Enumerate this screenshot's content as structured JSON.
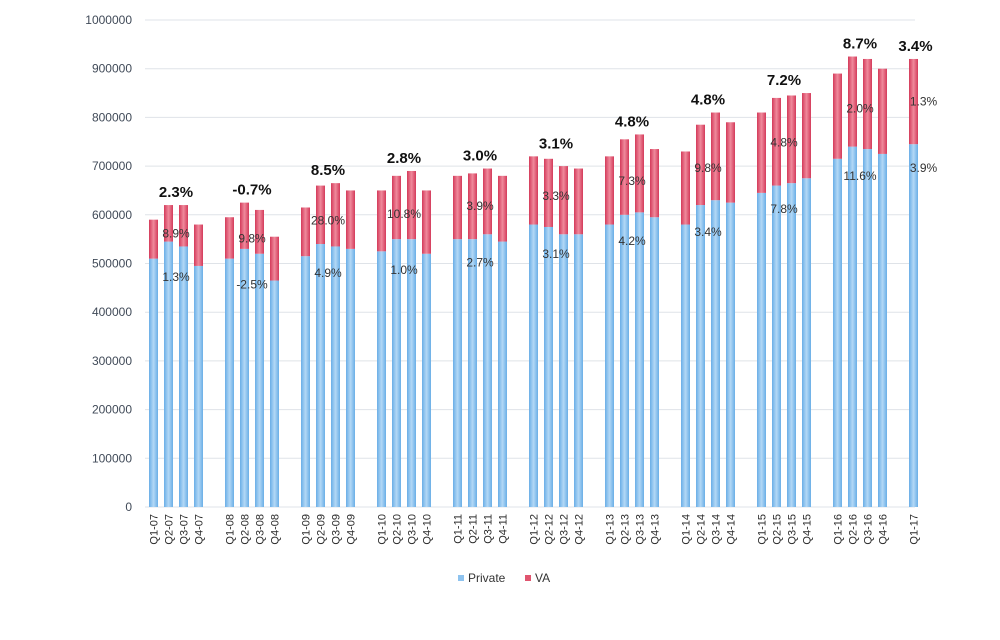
{
  "chart_data": {
    "type": "bar",
    "stacked": true,
    "title": "",
    "xlabel": "",
    "ylabel": "",
    "ylim": [
      0,
      1000000
    ],
    "yticks": [
      0,
      100000,
      200000,
      300000,
      400000,
      500000,
      600000,
      700000,
      800000,
      900000,
      1000000
    ],
    "grid": true,
    "legend_position": "bottom",
    "categories": [
      "Q1-07",
      "Q2-07",
      "Q3-07",
      "Q4-07",
      "Q1-08",
      "Q2-08",
      "Q3-08",
      "Q4-08",
      "Q1-09",
      "Q2-09",
      "Q3-09",
      "Q4-09",
      "Q1-10",
      "Q2-10",
      "Q3-10",
      "Q4-10",
      "Q1-11",
      "Q2-11",
      "Q3-11",
      "Q4-11",
      "Q1-12",
      "Q2-12",
      "Q3-12",
      "Q4-12",
      "Q1-13",
      "Q2-13",
      "Q3-13",
      "Q4-13",
      "Q1-14",
      "Q2-14",
      "Q3-14",
      "Q4-14",
      "Q1-15",
      "Q2-15",
      "Q3-15",
      "Q4-15",
      "Q1-16",
      "Q2-16",
      "Q3-16",
      "Q4-16",
      "Q1-17"
    ],
    "series": [
      {
        "name": "Private",
        "color": "#8ec3ef",
        "values": [
          510000,
          545000,
          535000,
          495000,
          510000,
          530000,
          520000,
          465000,
          515000,
          540000,
          535000,
          530000,
          525000,
          550000,
          550000,
          520000,
          550000,
          550000,
          560000,
          545000,
          580000,
          575000,
          560000,
          560000,
          580000,
          600000,
          605000,
          595000,
          580000,
          620000,
          630000,
          625000,
          645000,
          660000,
          665000,
          675000,
          715000,
          740000,
          735000,
          725000,
          745000
        ]
      },
      {
        "name": "VA",
        "color": "#e0556f",
        "values": [
          80000,
          75000,
          85000,
          85000,
          85000,
          95000,
          90000,
          90000,
          100000,
          120000,
          130000,
          120000,
          125000,
          130000,
          140000,
          130000,
          130000,
          135000,
          135000,
          135000,
          140000,
          140000,
          140000,
          135000,
          140000,
          155000,
          160000,
          140000,
          150000,
          165000,
          180000,
          165000,
          165000,
          180000,
          180000,
          175000,
          175000,
          185000,
          185000,
          175000,
          175000
        ]
      }
    ],
    "annotations": {
      "groups": [
        {
          "first": 0,
          "last": 3,
          "growth": "2.3%",
          "va": "8.9%",
          "private": "1.3%"
        },
        {
          "first": 4,
          "last": 7,
          "growth": "-0.7%",
          "va": "9.8%",
          "private": "-2.5%"
        },
        {
          "first": 8,
          "last": 11,
          "growth": "8.5%",
          "va": "28.0%",
          "private": "4.9%"
        },
        {
          "first": 12,
          "last": 15,
          "growth": "2.8%",
          "va": "10.8%",
          "private": "1.0%"
        },
        {
          "first": 16,
          "last": 19,
          "growth": "3.0%",
          "va": "3.9%",
          "private": "2.7%"
        },
        {
          "first": 20,
          "last": 23,
          "growth": "3.1%",
          "va": "3.3%",
          "private": "3.1%"
        },
        {
          "first": 24,
          "last": 27,
          "growth": "4.8%",
          "va": "7.3%",
          "private": "4.2%"
        },
        {
          "first": 28,
          "last": 31,
          "growth": "4.8%",
          "va": "9.8%",
          "private": "3.4%"
        },
        {
          "first": 32,
          "last": 35,
          "growth": "7.2%",
          "va": "4.8%",
          "private": "7.8%"
        },
        {
          "first": 36,
          "last": 39,
          "growth": "8.7%",
          "va": "2.0%",
          "private": "11.6%"
        },
        {
          "first": 40,
          "last": 40,
          "growth": "3.4%",
          "va": "1.3%",
          "private": "3.9%"
        }
      ]
    }
  }
}
